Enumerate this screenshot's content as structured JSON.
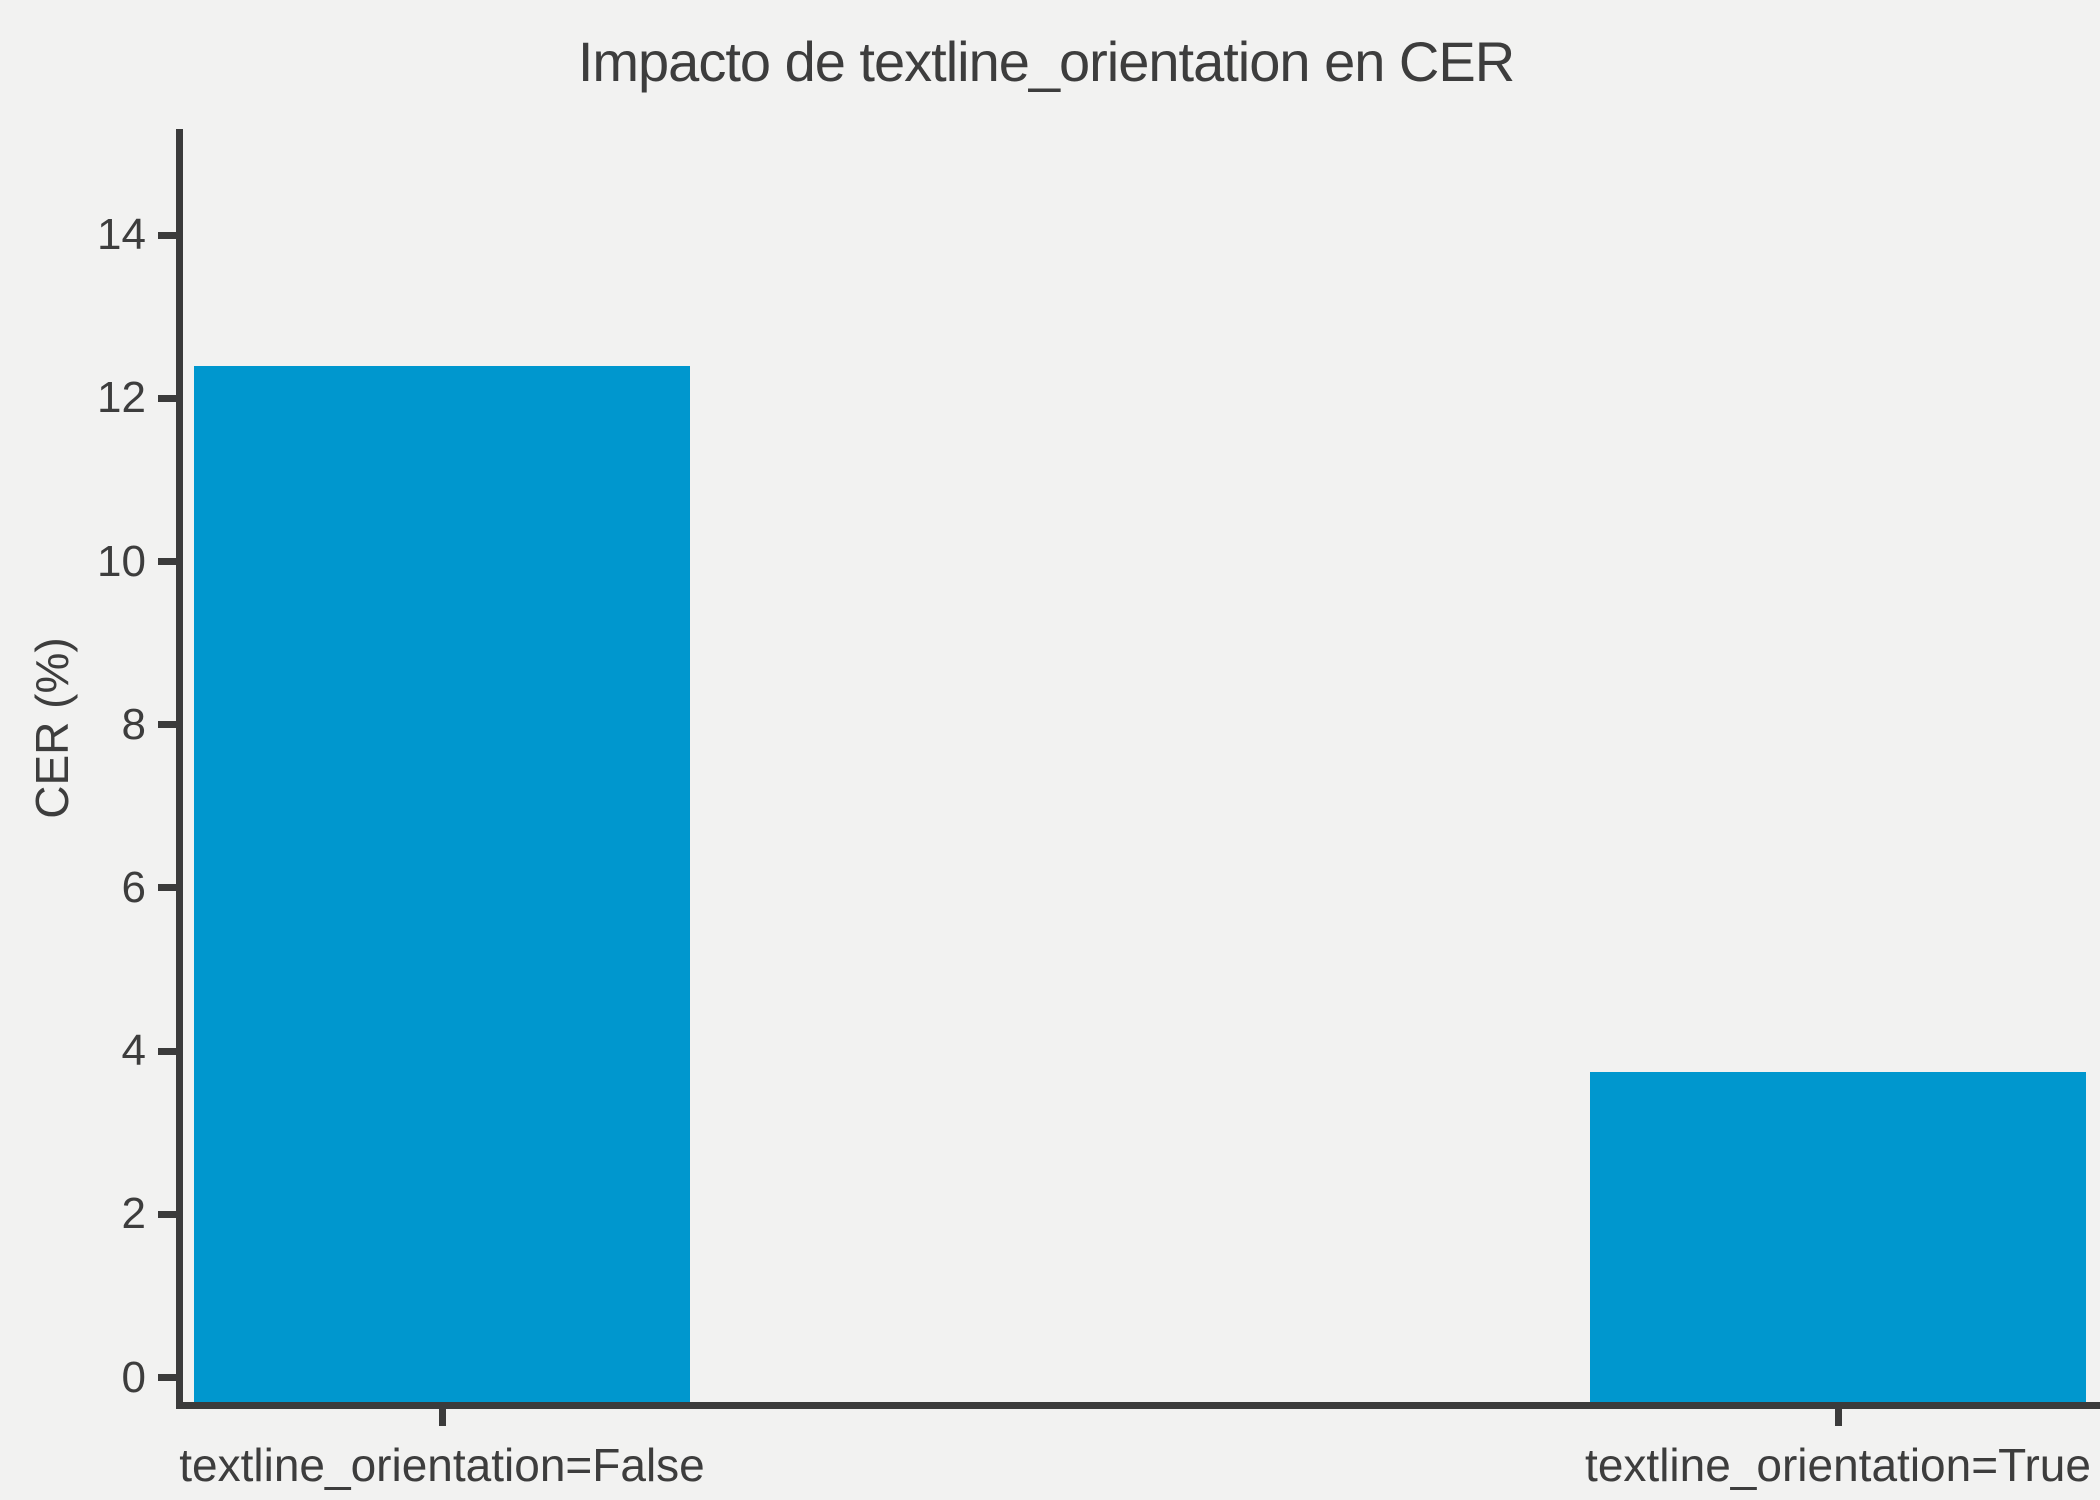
{
  "title": "Impacto de textline_orientation en CER",
  "colors": {
    "background": "#f2f2f1",
    "bar": "#0097ce",
    "axis": "#3b3b3b",
    "text": "#3d3d3d"
  },
  "chart_data": {
    "type": "bar",
    "categories": [
      "textline_orientation=False",
      "textline_orientation=True"
    ],
    "values": [
      12.4,
      3.75
    ],
    "title": "Impacto de textline_orientation en CER",
    "xlabel": "",
    "ylabel": "CER (%)",
    "ylim": [
      -0.3,
      15.3
    ],
    "yticks": [
      0,
      2,
      4,
      6,
      8,
      10,
      12,
      14
    ],
    "grid": false,
    "legend": null,
    "bar_orientation": "vertical"
  }
}
